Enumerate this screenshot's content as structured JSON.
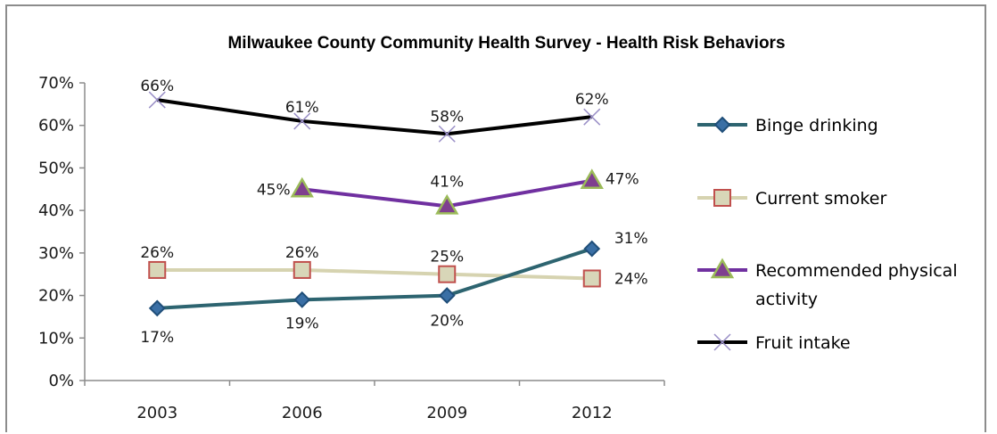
{
  "chart_data": {
    "type": "line",
    "title": "Milwaukee County Community Health Survey - Health Risk Behaviors",
    "categories": [
      "2003",
      "2006",
      "2009",
      "2012"
    ],
    "ylim": [
      0,
      70
    ],
    "yticks": [
      "0%",
      "10%",
      "20%",
      "30%",
      "40%",
      "50%",
      "60%",
      "70%"
    ],
    "grid": false,
    "legend_position": "right",
    "series": [
      {
        "name": "Binge drinking",
        "legend_lines": [
          "Binge drinking"
        ],
        "values": [
          17,
          19,
          20,
          31
        ],
        "labels": [
          "17%",
          "19%",
          "20%",
          "31%"
        ],
        "color": "#2d6470",
        "marker": "diamond",
        "marker_fill": "#3a6fa5",
        "marker_stroke": "#1f4e79"
      },
      {
        "name": "Current smoker",
        "legend_lines": [
          "Current smoker"
        ],
        "values": [
          26,
          26,
          25,
          24
        ],
        "labels": [
          "26%",
          "26%",
          "25%",
          "24%"
        ],
        "color": "#d6d3b0",
        "marker": "square",
        "marker_fill": "#d8d6b8",
        "marker_stroke": "#c0504d"
      },
      {
        "name": "Recommended physical activity",
        "legend_lines": [
          "Recommended physical",
          "activity"
        ],
        "values": [
          null,
          45,
          41,
          47
        ],
        "labels": [
          "",
          "45%",
          "41%",
          "47%"
        ],
        "color": "#7030a0",
        "marker": "triangle",
        "marker_fill": "#7f3f8f",
        "marker_stroke": "#9bbb59"
      },
      {
        "name": "Fruit intake",
        "legend_lines": [
          "Fruit intake"
        ],
        "values": [
          66,
          61,
          58,
          62
        ],
        "labels": [
          "66%",
          "61%",
          "58%",
          "62%"
        ],
        "color": "#000000",
        "marker": "x",
        "marker_fill": "none",
        "marker_stroke": "#9a8fc7"
      }
    ]
  }
}
